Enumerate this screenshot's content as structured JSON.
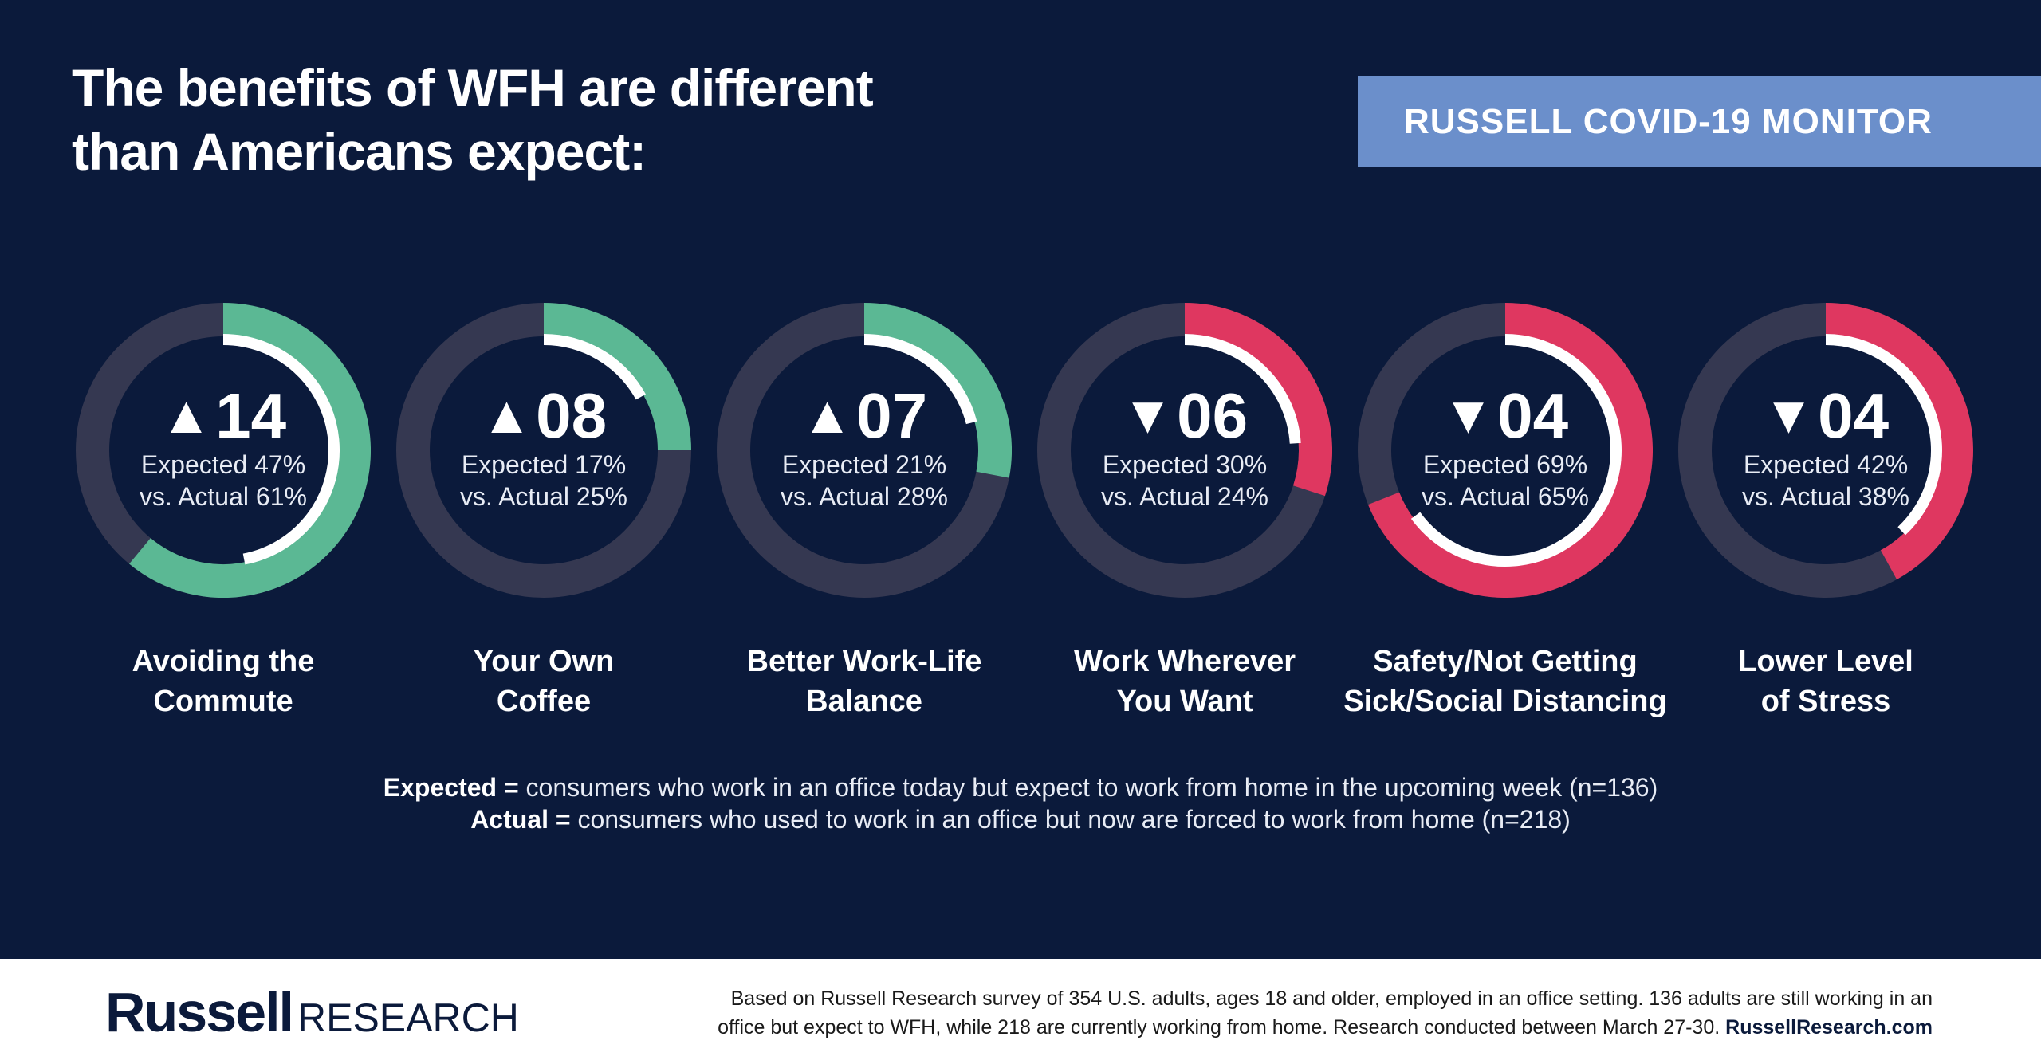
{
  "title": {
    "line1": "The benefits of WFH are different",
    "line2": "than Americans expect:"
  },
  "badge": "RUSSELL COVID-19 MONITOR",
  "colors": {
    "background": "#0b1a3b",
    "track": "#353851",
    "up": "#5bb894",
    "down": "#df3760",
    "inner": "#ffffff",
    "badge": "#6b8fcb"
  },
  "chart_data": {
    "type": "radial",
    "items": [
      {
        "label_line1": "Avoiding the",
        "label_line2": "Commute",
        "direction": "up",
        "arrow": "▲",
        "delta": "14",
        "expected": 47,
        "actual": 61,
        "expected_text": "Expected 47%",
        "actual_text": "vs. Actual 61%"
      },
      {
        "label_line1": "Your Own",
        "label_line2": "Coffee",
        "direction": "up",
        "arrow": "▲",
        "delta": "08",
        "expected": 17,
        "actual": 25,
        "expected_text": "Expected 17%",
        "actual_text": "vs. Actual 25%"
      },
      {
        "label_line1": "Better Work-Life",
        "label_line2": "Balance",
        "direction": "up",
        "arrow": "▲",
        "delta": "07",
        "expected": 21,
        "actual": 28,
        "expected_text": "Expected 21%",
        "actual_text": "vs. Actual 28%"
      },
      {
        "label_line1": "Work Wherever",
        "label_line2": "You Want",
        "direction": "down",
        "arrow": "▼",
        "delta": "06",
        "expected": 30,
        "actual": 24,
        "expected_text": "Expected 30%",
        "actual_text": "vs. Actual 24%"
      },
      {
        "label_line1": "Safety/Not Getting",
        "label_line2": "Sick/Social Distancing",
        "direction": "down",
        "arrow": "▼",
        "delta": "04",
        "expected": 69,
        "actual": 65,
        "expected_text": "Expected 69%",
        "actual_text": "vs. Actual 65%"
      },
      {
        "label_line1": "Lower Level",
        "label_line2": "of Stress",
        "direction": "down",
        "arrow": "▼",
        "delta": "04",
        "expected": 42,
        "actual": 38,
        "expected_text": "Expected 42%",
        "actual_text": "vs. Actual 38%"
      }
    ]
  },
  "legend": {
    "expected_term": "Expected =",
    "expected_def": " consumers who work in an office today but expect to work from home in the upcoming week (n=136)",
    "actual_term": "Actual =",
    "actual_def": " consumers who used to work in an office but now are forced to work from home (n=218)"
  },
  "footer": {
    "logo_bold": "Russell",
    "logo_light": "RESEARCH",
    "note_line1": "Based on Russell Research survey of 354 U.S. adults, ages 18 and older, employed in an office setting. 136 adults are still working in an",
    "note_line2": "office but expect to WFH, while 218 are currently working from home. Research conducted between March 27-30. ",
    "note_link": "RussellResearch.com"
  }
}
